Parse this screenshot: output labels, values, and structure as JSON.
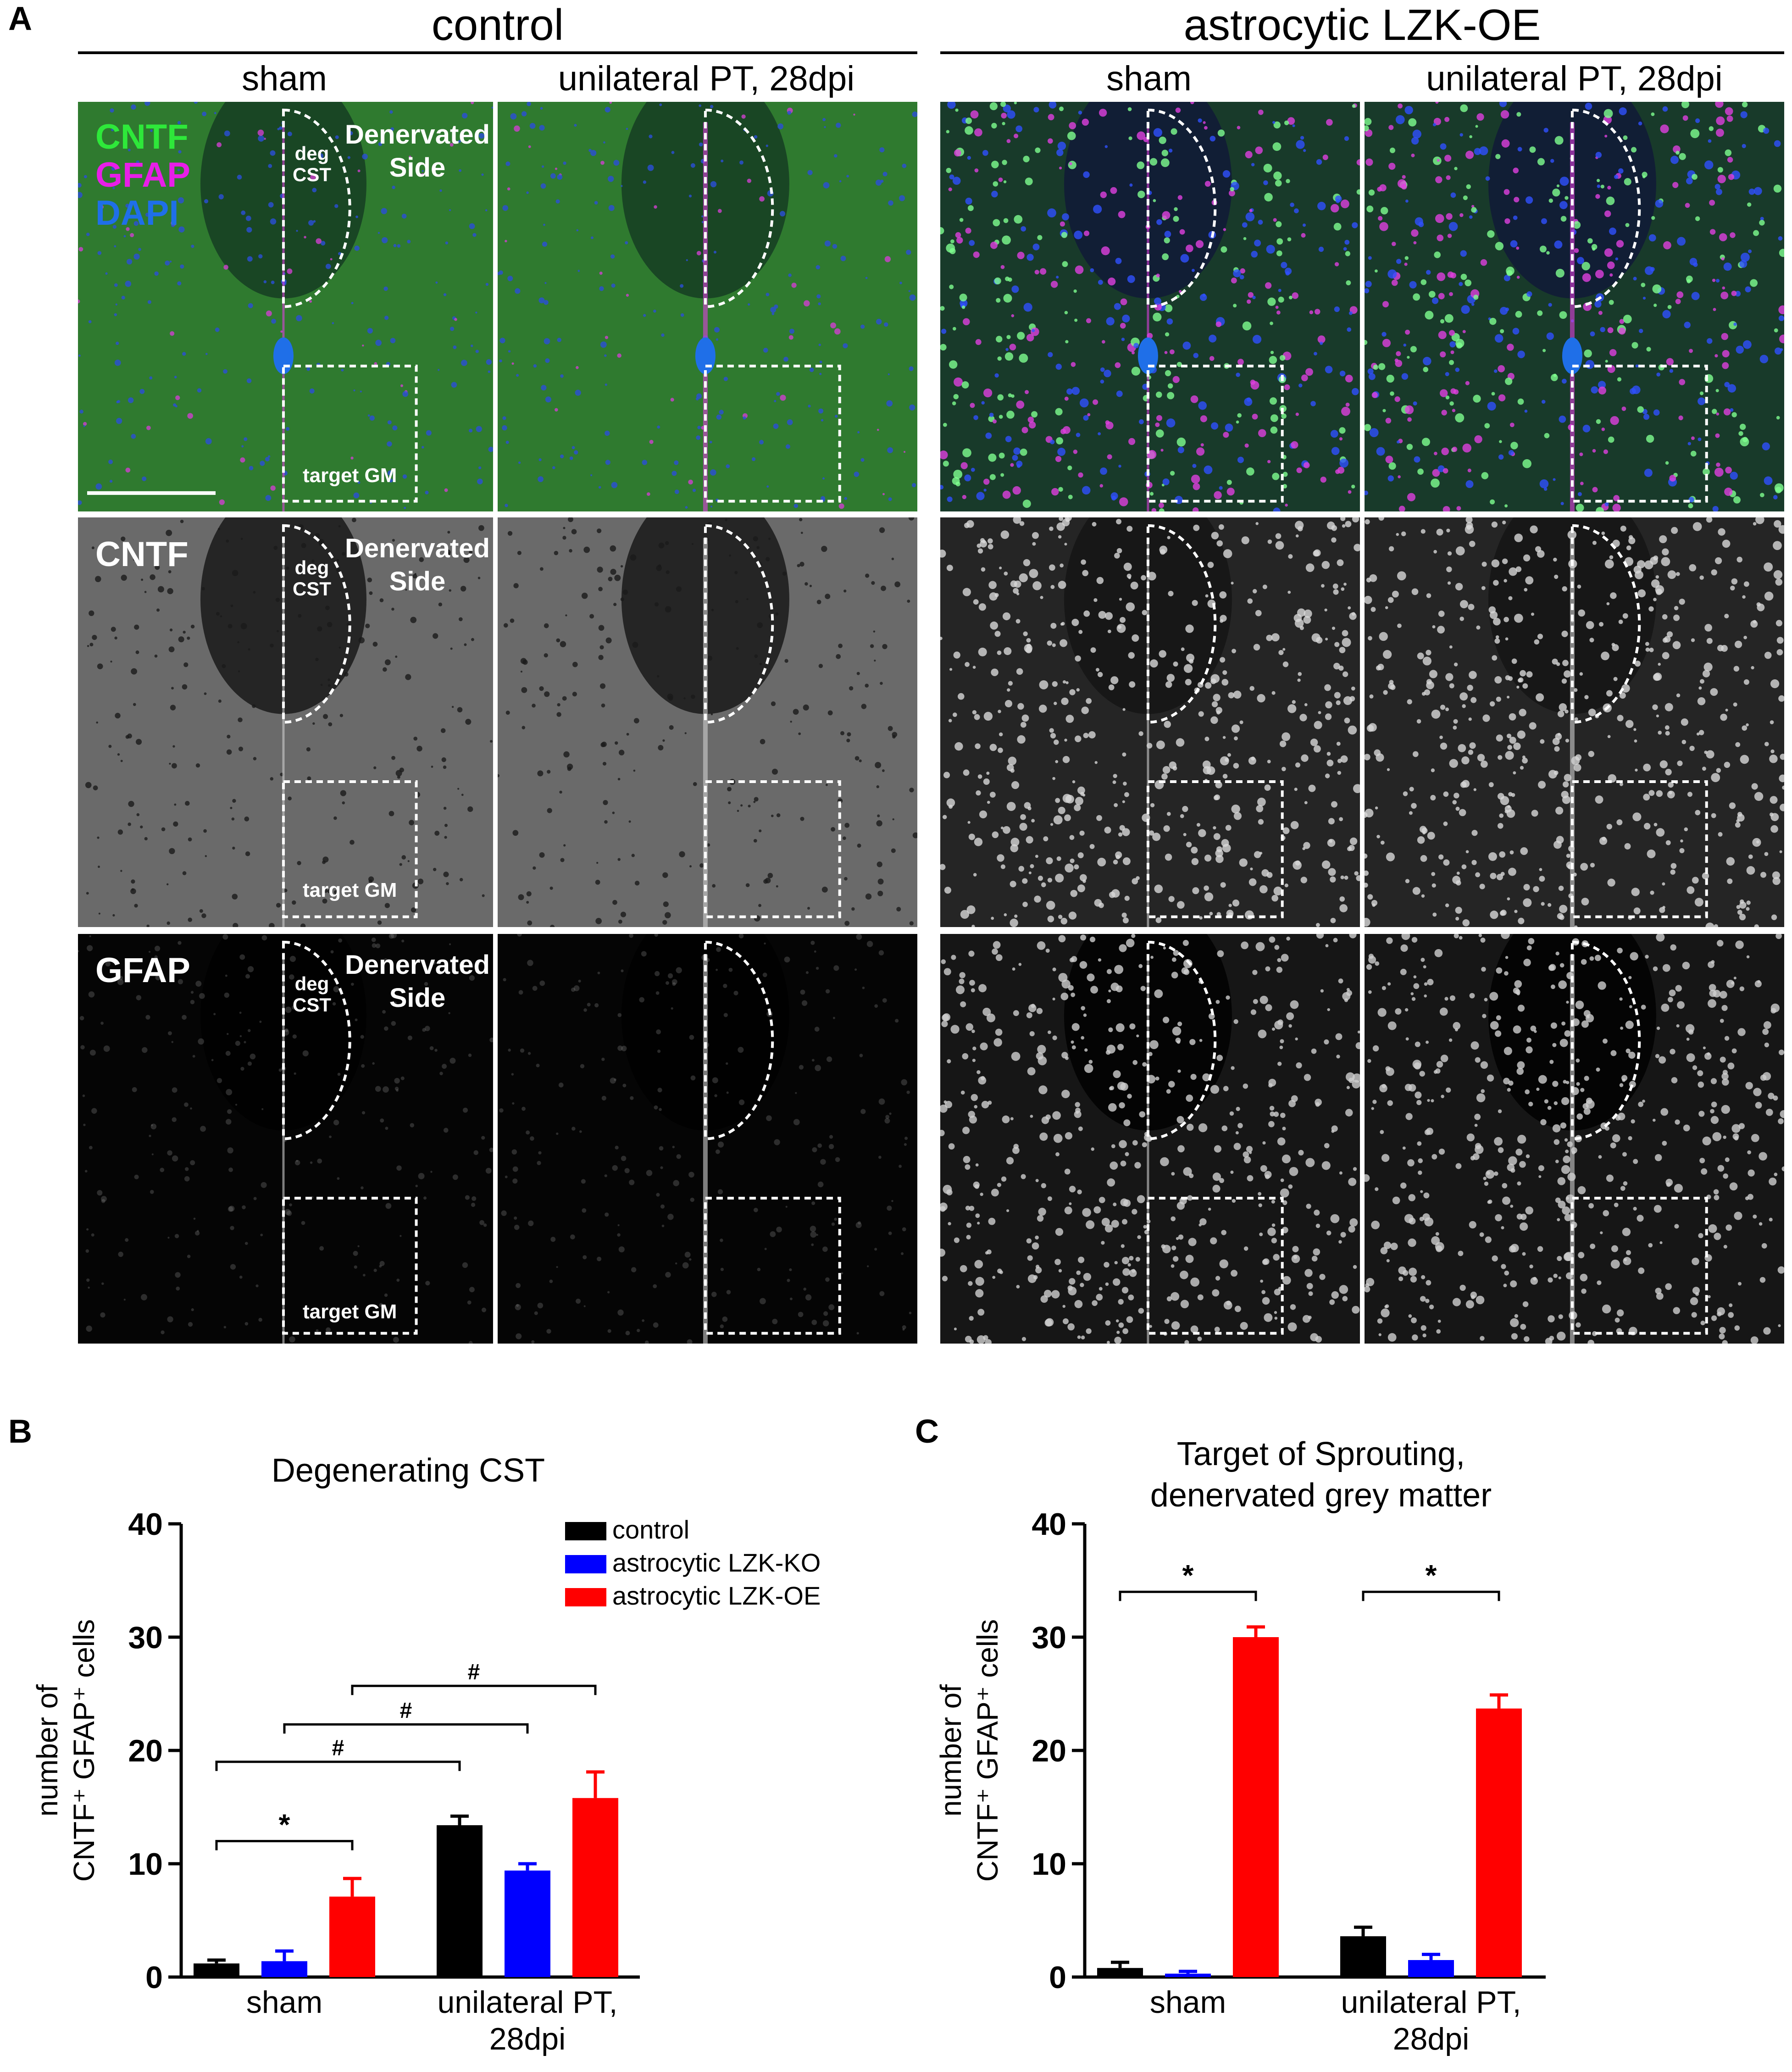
{
  "panel_a": {
    "letter": "A",
    "groups": [
      "control",
      "astrocytic LZK-OE"
    ],
    "columns": [
      "sham",
      "unilateral PT, 28dpi",
      "sham",
      "unilateral PT, 28dpi"
    ],
    "legend_merged": {
      "cntf": "CNTF",
      "gfap": "GFAP",
      "dapi": "DAPI"
    },
    "row_labels": [
      "CNTF",
      "GFAP"
    ],
    "annotations": {
      "denervated_line1": "Denervated",
      "denervated_line2": "Side",
      "deg": "deg",
      "cst": "CST",
      "target_gm": "target GM"
    },
    "colors": {
      "cntf": "#2ee83a",
      "gfap": "#e81ee8",
      "dapi": "#1f6fe8"
    }
  },
  "panel_b": {
    "letter": "B"
  },
  "panel_c": {
    "letter": "C"
  },
  "chart_data": [
    {
      "type": "bar",
      "title": "Degenerating CST",
      "ylabel": "number of CNTF⁺ GFAP⁺ cells",
      "ylabel_line1": "number of",
      "ylabel_line2": "CNTF⁺ GFAP⁺ cells",
      "categories": [
        "sham",
        "unilateral PT, 28dpi"
      ],
      "category_lines": [
        [
          "sham"
        ],
        [
          "unilateral PT,",
          "28dpi"
        ]
      ],
      "ylim": [
        0,
        40
      ],
      "yticks": [
        "0",
        "10",
        "20",
        "30",
        "40"
      ],
      "legend": "top-right",
      "series": [
        {
          "name": "control",
          "color": "#000000",
          "values": [
            1.2,
            13.4
          ],
          "errors": [
            0.3,
            0.8
          ]
        },
        {
          "name": "astrocytic LZK-KO",
          "color": "#0000ff",
          "values": [
            1.4,
            9.4
          ],
          "errors": [
            0.9,
            0.6
          ]
        },
        {
          "name": "astrocytic LZK-OE",
          "color": "#ff0000",
          "values": [
            7.1,
            15.8
          ],
          "errors": [
            1.6,
            2.3
          ]
        }
      ],
      "annotations": [
        {
          "label": "*",
          "from": [
            0,
            0
          ],
          "to": [
            0,
            2
          ],
          "y": 12.0
        },
        {
          "label": "#",
          "from": [
            0,
            0
          ],
          "to": [
            1,
            0
          ],
          "y": 19.0
        },
        {
          "label": "#",
          "from": [
            0,
            1
          ],
          "to": [
            1,
            1
          ],
          "y": 22.3
        },
        {
          "label": "#",
          "from": [
            0,
            2
          ],
          "to": [
            1,
            2
          ],
          "y": 25.7
        }
      ]
    },
    {
      "type": "bar",
      "title": "Target of Sprouting, denervated grey matter",
      "title_lines": [
        "Target of Sprouting,",
        "denervated grey matter"
      ],
      "ylabel": "number of CNTF⁺ GFAP⁺ cells",
      "ylabel_line1": "number of",
      "ylabel_line2": "CNTF⁺ GFAP⁺ cells",
      "categories": [
        "sham",
        "unilateral PT, 28dpi"
      ],
      "category_lines": [
        [
          "sham"
        ],
        [
          "unilateral PT,",
          "28dpi"
        ]
      ],
      "ylim": [
        0,
        40
      ],
      "yticks": [
        "0",
        "10",
        "20",
        "30",
        "40"
      ],
      "series": [
        {
          "name": "control",
          "color": "#000000",
          "values": [
            0.8,
            3.6
          ],
          "errors": [
            0.5,
            0.8
          ]
        },
        {
          "name": "astrocytic LZK-KO",
          "color": "#0000ff",
          "values": [
            0.3,
            1.5
          ],
          "errors": [
            0.2,
            0.5
          ]
        },
        {
          "name": "astrocytic LZK-OE",
          "color": "#ff0000",
          "values": [
            30.0,
            23.7
          ],
          "errors": [
            0.9,
            1.2
          ]
        }
      ],
      "annotations": [
        {
          "label": "*",
          "from": [
            0,
            0
          ],
          "to": [
            0,
            2
          ],
          "y": 34.0
        },
        {
          "label": "*",
          "from": [
            1,
            0
          ],
          "to": [
            1,
            2
          ],
          "y": 34.0
        }
      ]
    }
  ]
}
